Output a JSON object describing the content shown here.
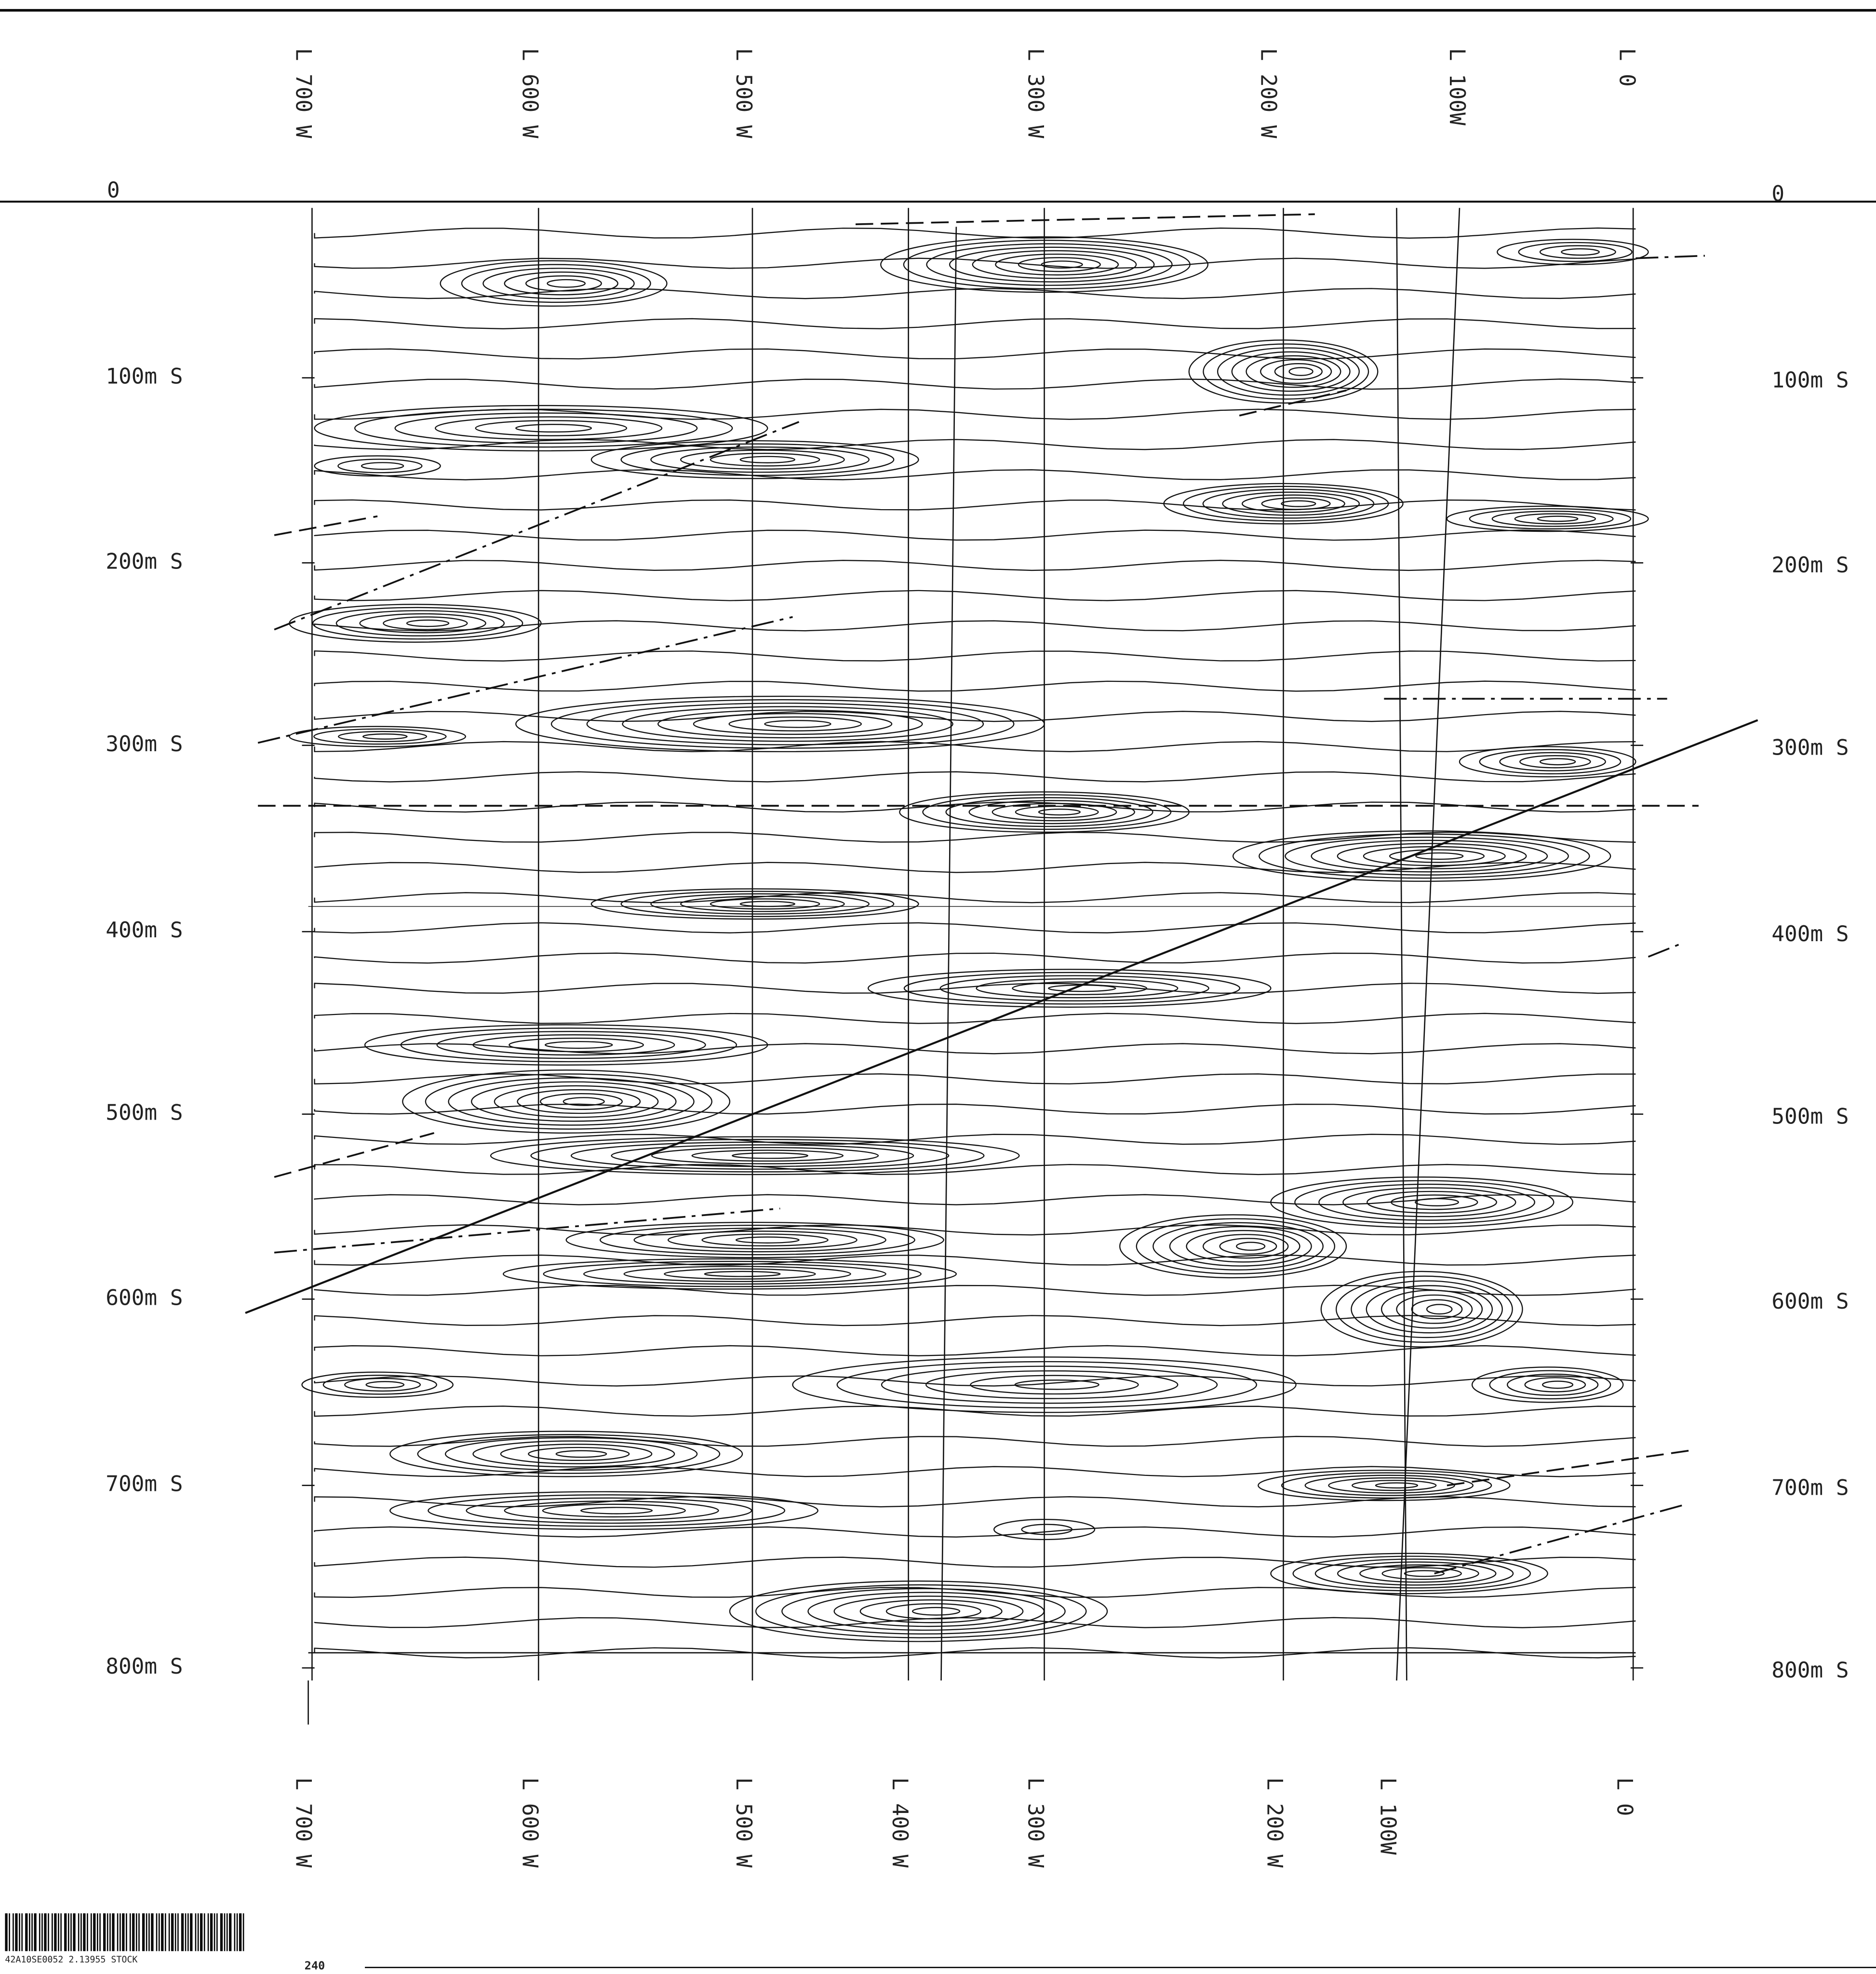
{
  "map": {
    "top_lines": [
      "L 700 W",
      "L 600 W",
      "L 500 W",
      "L 300 W",
      "L 200 W",
      "L 100W",
      "L 0"
    ],
    "bottom_lines": [
      "L 700 W",
      "L 600 W",
      "L 500 W",
      "L 400 W",
      "L 300 W",
      "L 200 W",
      "L 100W",
      "L 0"
    ],
    "left_stations": [
      "0",
      "100m S",
      "200m S",
      "300m S",
      "400m S",
      "500m S",
      "600m S",
      "700m S",
      "800m S"
    ],
    "right_stations": [
      "0",
      "100m S",
      "200m S",
      "300m S",
      "400m S",
      "500m S",
      "600m S",
      "700m S",
      "800m S"
    ],
    "footer": {
      "barcode_text": "42A10SE0052 2.13955 STOCK",
      "page_number": "240"
    }
  }
}
